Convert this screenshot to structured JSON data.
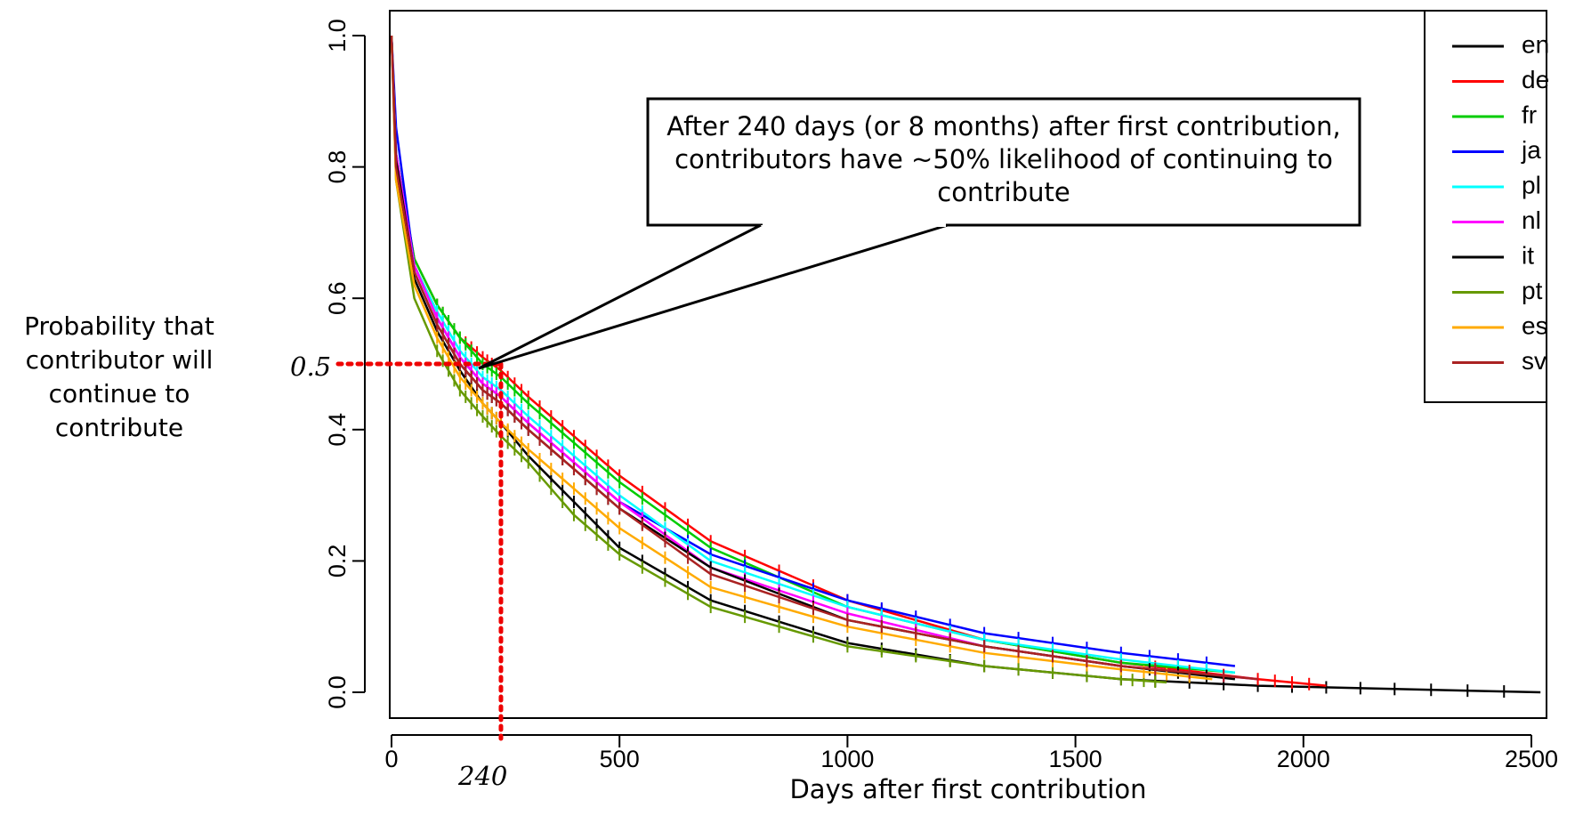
{
  "chart_data": {
    "type": "line",
    "xlabel": "Days after first contribution",
    "ylabel": "Probability that contributor will continue to contribute",
    "xlim": [
      0,
      2550
    ],
    "ylim": [
      0,
      1.0
    ],
    "x_ticks": [
      "0",
      "500",
      "1000",
      "1500",
      "2000",
      "2500"
    ],
    "y_ticks": [
      "0.0",
      "0.2",
      "0.4",
      "0.6",
      "0.8",
      "1.0"
    ],
    "legend_position": "top-right",
    "grid": false,
    "series": [
      {
        "name": "en",
        "color": "#000000",
        "x": [
          0,
          10,
          50,
          100,
          150,
          200,
          240,
          300,
          400,
          500,
          700,
          1000,
          1300,
          1600,
          1900,
          2200,
          2520
        ],
        "y": [
          1.0,
          0.8,
          0.63,
          0.55,
          0.49,
          0.44,
          0.41,
          0.36,
          0.29,
          0.22,
          0.14,
          0.075,
          0.04,
          0.02,
          0.01,
          0.005,
          0.0
        ]
      },
      {
        "name": "de",
        "color": "#ff0000",
        "x": [
          0,
          10,
          50,
          100,
          150,
          200,
          240,
          300,
          400,
          500,
          700,
          1000,
          1300,
          1600,
          1900,
          2050
        ],
        "y": [
          1.0,
          0.82,
          0.66,
          0.59,
          0.54,
          0.51,
          0.49,
          0.45,
          0.39,
          0.33,
          0.23,
          0.14,
          0.08,
          0.045,
          0.02,
          0.01
        ]
      },
      {
        "name": "fr",
        "color": "#00cc00",
        "x": [
          0,
          10,
          50,
          100,
          150,
          200,
          240,
          300,
          400,
          500,
          700,
          1000,
          1300,
          1600,
          1850
        ],
        "y": [
          1.0,
          0.82,
          0.66,
          0.59,
          0.54,
          0.5,
          0.48,
          0.44,
          0.38,
          0.32,
          0.22,
          0.13,
          0.08,
          0.045,
          0.03
        ]
      },
      {
        "name": "ja",
        "color": "#0000ff",
        "x": [
          0,
          10,
          50,
          100,
          150,
          200,
          240,
          300,
          400,
          500,
          700,
          1000,
          1300,
          1600,
          1850
        ],
        "y": [
          1.0,
          0.86,
          0.65,
          0.57,
          0.51,
          0.47,
          0.45,
          0.41,
          0.35,
          0.29,
          0.21,
          0.14,
          0.09,
          0.06,
          0.04
        ]
      },
      {
        "name": "pl",
        "color": "#00ffff",
        "x": [
          0,
          10,
          50,
          100,
          150,
          200,
          240,
          300,
          400,
          500,
          700,
          1000,
          1300,
          1600,
          1850
        ],
        "y": [
          1.0,
          0.82,
          0.65,
          0.58,
          0.52,
          0.48,
          0.46,
          0.42,
          0.36,
          0.3,
          0.2,
          0.13,
          0.08,
          0.05,
          0.03
        ]
      },
      {
        "name": "nl",
        "color": "#ff00ff",
        "x": [
          0,
          10,
          50,
          100,
          150,
          200,
          240,
          300,
          400,
          500,
          700,
          1000,
          1300,
          1600,
          1900
        ],
        "y": [
          1.0,
          0.82,
          0.65,
          0.57,
          0.51,
          0.47,
          0.45,
          0.41,
          0.35,
          0.29,
          0.19,
          0.12,
          0.07,
          0.04,
          0.02
        ]
      },
      {
        "name": "it",
        "color": "#000000",
        "x": [
          0,
          10,
          50,
          100,
          150,
          200,
          240,
          300,
          400,
          500,
          700,
          1000,
          1300,
          1600,
          1850
        ],
        "y": [
          1.0,
          0.81,
          0.64,
          0.56,
          0.5,
          0.46,
          0.44,
          0.4,
          0.34,
          0.28,
          0.19,
          0.11,
          0.07,
          0.04,
          0.02
        ]
      },
      {
        "name": "pt",
        "color": "#669900",
        "x": [
          0,
          10,
          50,
          100,
          150,
          200,
          240,
          300,
          400,
          500,
          700,
          1000,
          1300,
          1600,
          1700
        ],
        "y": [
          1.0,
          0.78,
          0.6,
          0.52,
          0.46,
          0.42,
          0.39,
          0.35,
          0.27,
          0.21,
          0.13,
          0.07,
          0.04,
          0.02,
          0.015
        ]
      },
      {
        "name": "es",
        "color": "#ffaa00",
        "x": [
          0,
          10,
          50,
          100,
          150,
          200,
          240,
          300,
          400,
          500,
          700,
          1000,
          1300,
          1600,
          1800
        ],
        "y": [
          1.0,
          0.78,
          0.62,
          0.54,
          0.48,
          0.44,
          0.41,
          0.37,
          0.31,
          0.25,
          0.16,
          0.1,
          0.06,
          0.035,
          0.02
        ]
      },
      {
        "name": "sv",
        "color": "#aa2222",
        "x": [
          0,
          10,
          50,
          100,
          150,
          200,
          240,
          300,
          400,
          500,
          700,
          1000,
          1300,
          1600,
          1900
        ],
        "y": [
          1.0,
          0.8,
          0.64,
          0.56,
          0.5,
          0.46,
          0.44,
          0.4,
          0.34,
          0.28,
          0.18,
          0.11,
          0.07,
          0.04,
          0.02
        ]
      }
    ],
    "annotations": [
      {
        "text": "After 240 days (or 8 months) after first contribution, contributors have ~50% likelihood of continuing to contribute",
        "x": 240,
        "y": 0.5
      },
      {
        "text": "0.5",
        "marks": "y",
        "value": 0.5
      },
      {
        "text": "240",
        "marks": "x",
        "value": 240
      }
    ],
    "reference_color": "#ee0000"
  }
}
